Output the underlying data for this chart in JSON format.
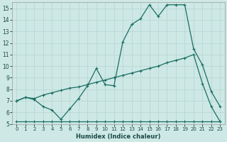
{
  "xlabel": "Humidex (Indice chaleur)",
  "background_color": "#cde8e5",
  "grid_color": "#b8d8d4",
  "line_color": "#1a6e62",
  "xlim": [
    -0.5,
    23.5
  ],
  "ylim": [
    5,
    15.5
  ],
  "xticks": [
    0,
    1,
    2,
    3,
    4,
    5,
    6,
    7,
    8,
    9,
    10,
    11,
    12,
    13,
    14,
    15,
    16,
    17,
    18,
    19,
    20,
    21,
    22,
    23
  ],
  "yticks": [
    5,
    6,
    7,
    8,
    9,
    10,
    11,
    12,
    13,
    14,
    15
  ],
  "series1_x": [
    0,
    1,
    2,
    3,
    4,
    5,
    6,
    7,
    8,
    9,
    10,
    11,
    12,
    13,
    14,
    15,
    16,
    17,
    18,
    19,
    20,
    21,
    22,
    23
  ],
  "series1_y": [
    7.0,
    7.3,
    7.1,
    6.5,
    6.2,
    5.4,
    6.3,
    7.2,
    8.3,
    9.8,
    8.4,
    8.3,
    12.1,
    13.6,
    14.1,
    15.3,
    14.3,
    15.3,
    15.3,
    15.3,
    11.5,
    10.1,
    7.8,
    6.5
  ],
  "series2_x": [
    0,
    1,
    2,
    3,
    4,
    5,
    6,
    7,
    8,
    9,
    10,
    11,
    12,
    13,
    14,
    15,
    16,
    17,
    18,
    19,
    20,
    21,
    22,
    23
  ],
  "series2_y": [
    7.0,
    7.3,
    7.2,
    7.5,
    7.7,
    7.9,
    8.1,
    8.2,
    8.4,
    8.6,
    8.8,
    9.0,
    9.2,
    9.4,
    9.6,
    9.8,
    10.0,
    10.3,
    10.5,
    10.7,
    11.0,
    8.5,
    6.5,
    5.2
  ],
  "series3_x": [
    0,
    1,
    2,
    3,
    4,
    5,
    6,
    7,
    8,
    9,
    10,
    11,
    12,
    13,
    14,
    15,
    16,
    17,
    18,
    19,
    20,
    21,
    22,
    23
  ],
  "series3_y": [
    5.2,
    5.2,
    5.2,
    5.2,
    5.2,
    5.2,
    5.2,
    5.2,
    5.2,
    5.2,
    5.2,
    5.2,
    5.2,
    5.2,
    5.2,
    5.2,
    5.2,
    5.2,
    5.2,
    5.2,
    5.2,
    5.2,
    5.2,
    5.2
  ],
  "xlabel_fontsize": 6.0,
  "tick_fontsize_x": 5.0,
  "tick_fontsize_y": 5.5,
  "spine_color": "#999999"
}
